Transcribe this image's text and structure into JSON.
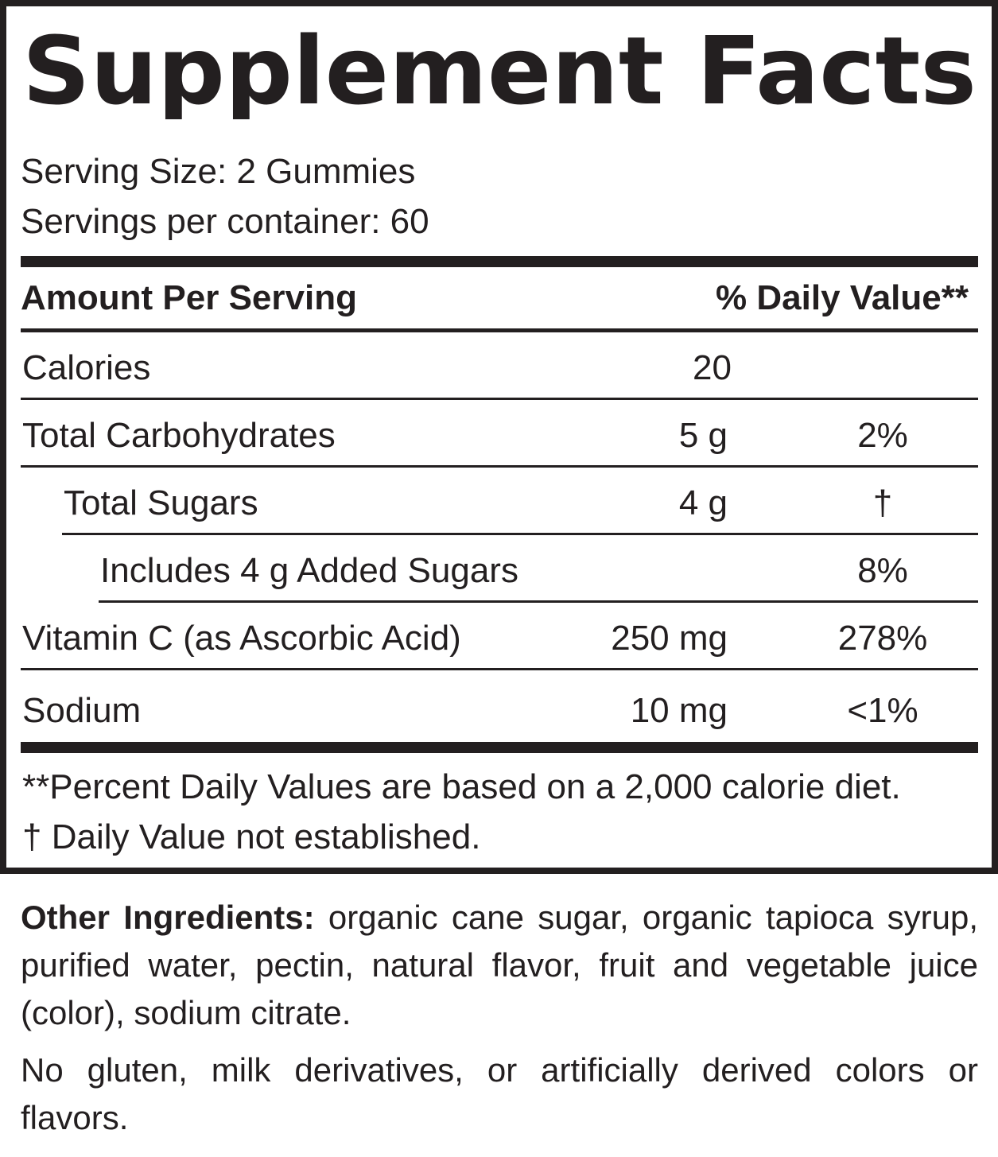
{
  "title": "Supplement Facts",
  "serving_size": "Serving Size: 2 Gummies",
  "servings_per_container": "Servings per container: 60",
  "header": {
    "amount": "Amount Per Serving",
    "daily_value": "% Daily Value**"
  },
  "rows": [
    {
      "name": "Calories",
      "amount": "20"
    },
    {
      "name": "Total Carbohydrates",
      "amount": "5 g",
      "daily_value": "2%"
    },
    {
      "name": "Total Sugars",
      "amount": "4 g",
      "daily_value": "†"
    },
    {
      "name": "Includes 4 g Added Sugars",
      "daily_value": "8%"
    },
    {
      "name": "Vitamin C (as Ascorbic Acid)",
      "amount": "250 mg",
      "daily_value": "278%"
    },
    {
      "name": "Sodium",
      "amount": "10 mg",
      "daily_value": "<1%"
    }
  ],
  "footnotes": [
    "**Percent Daily Values are based on a 2,000 calorie diet.",
    "† Daily Value not established."
  ],
  "other_ingredients": {
    "label": "Other Ingredients:",
    "text": "organic cane sugar, organic tapioca syrup, purified water, pectin, natural flavor, fruit and vegetable juice (color), sodium citrate."
  },
  "notice": "No gluten, milk derivatives, or artificially derived colors or flavors."
}
